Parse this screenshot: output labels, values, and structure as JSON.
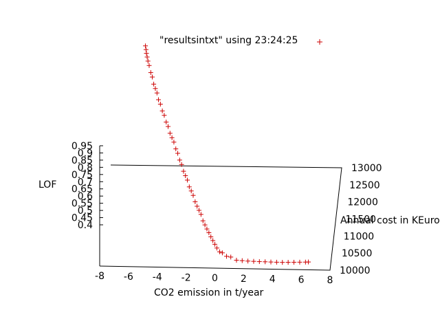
{
  "chart_data": {
    "type": "scatter",
    "series": [
      {
        "name": "\"resultsintxt\" using 23:24:25",
        "marker": "+",
        "color": "#cc0000",
        "points": [
          [
            -5.57,
            12770,
            0.94
          ],
          [
            -5.52,
            12730,
            0.93
          ],
          [
            -5.48,
            12690,
            0.92
          ],
          [
            -5.42,
            12650,
            0.91
          ],
          [
            -5.35,
            12600,
            0.9
          ],
          [
            -5.25,
            12540,
            0.89
          ],
          [
            -5.12,
            12470,
            0.87
          ],
          [
            -5.0,
            12410,
            0.86
          ],
          [
            -4.88,
            12340,
            0.84
          ],
          [
            -4.75,
            12280,
            0.83
          ],
          [
            -4.62,
            12220,
            0.82
          ],
          [
            -4.5,
            12160,
            0.8
          ],
          [
            -4.35,
            12100,
            0.79
          ],
          [
            -4.2,
            12040,
            0.77
          ],
          [
            -4.05,
            11980,
            0.76
          ],
          [
            -3.9,
            11920,
            0.74
          ],
          [
            -3.75,
            11860,
            0.73
          ],
          [
            -3.6,
            11800,
            0.71
          ],
          [
            -3.45,
            11740,
            0.7
          ],
          [
            -3.3,
            11680,
            0.69
          ],
          [
            -3.15,
            11620,
            0.67
          ],
          [
            -3.0,
            11560,
            0.66
          ],
          [
            -2.85,
            11500,
            0.64
          ],
          [
            -2.7,
            11440,
            0.63
          ],
          [
            -2.55,
            11380,
            0.61
          ],
          [
            -2.4,
            11320,
            0.6
          ],
          [
            -2.25,
            11260,
            0.59
          ],
          [
            -2.1,
            11200,
            0.57
          ],
          [
            -1.95,
            11150,
            0.56
          ],
          [
            -1.8,
            11090,
            0.55
          ],
          [
            -1.65,
            11040,
            0.53
          ],
          [
            -1.5,
            10980,
            0.52
          ],
          [
            -1.35,
            10930,
            0.51
          ],
          [
            -1.2,
            10880,
            0.5
          ],
          [
            -1.05,
            10830,
            0.48
          ],
          [
            -0.9,
            10780,
            0.47
          ],
          [
            -0.75,
            10730,
            0.46
          ],
          [
            -0.6,
            10690,
            0.45
          ],
          [
            -0.45,
            10640,
            0.44
          ],
          [
            -0.3,
            10600,
            0.43
          ],
          [
            -0.15,
            10560,
            0.42
          ],
          [
            0.0,
            10520,
            0.41
          ],
          [
            0.2,
            10480,
            0.4
          ],
          [
            0.4,
            10450,
            0.4
          ],
          [
            0.7,
            10420,
            0.39
          ],
          [
            1.0,
            10400,
            0.39
          ],
          [
            1.4,
            10380,
            0.38
          ],
          [
            1.8,
            10370,
            0.38
          ],
          [
            2.2,
            10360,
            0.38
          ],
          [
            2.6,
            10355,
            0.38
          ],
          [
            3.0,
            10350,
            0.38
          ],
          [
            3.4,
            10348,
            0.38
          ],
          [
            3.8,
            10345,
            0.38
          ],
          [
            4.2,
            10342,
            0.38
          ],
          [
            4.6,
            10340,
            0.38
          ],
          [
            5.0,
            10345,
            0.38
          ],
          [
            5.4,
            10350,
            0.38
          ],
          [
            5.8,
            10355,
            0.38
          ],
          [
            6.2,
            10360,
            0.38
          ],
          [
            6.4,
            10365,
            0.38
          ]
        ]
      }
    ],
    "xlabel": "CO2 emission in t/year",
    "ylabel": "Annual cost in KEuro",
    "zlabel": "LOF",
    "xlim": [
      -8,
      8
    ],
    "ylim": [
      10000,
      13000
    ],
    "zlim": [
      0.4,
      0.95
    ],
    "xticks": [
      "-8",
      "-6",
      "-4",
      "-2",
      "0",
      "2",
      "4",
      "6",
      "8"
    ],
    "yticks": [
      "10000",
      "10500",
      "11000",
      "11500",
      "12000",
      "12500",
      "13000"
    ],
    "zticks": [
      "0.95",
      "0.9",
      "0.85",
      "0.8",
      "0.75",
      "0.7",
      "0.65",
      "0.6",
      "0.55",
      "0.5",
      "0.45",
      "0.4"
    ],
    "grid": false,
    "legend_position": "top-right"
  }
}
